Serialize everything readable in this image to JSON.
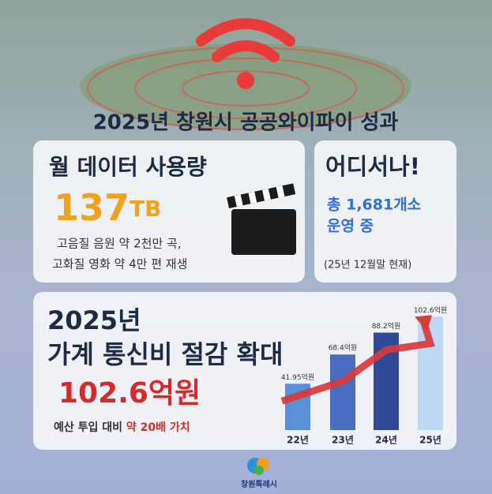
{
  "title": "2025년 창원시 공공와이파이 성과",
  "data_card": {
    "heading": "월 데이터 사용량",
    "value": "137",
    "unit": "TB",
    "lines": [
      "고음질 음원 약 2천만 곡,",
      "고화질 영화 약 4만 편 재생"
    ]
  },
  "location_card": {
    "heading": "어디서나!",
    "lines": [
      "총 1,681개소",
      "운영 중"
    ],
    "note": "(25년 12월말 현재)"
  },
  "savings_card": {
    "lines": [
      "2025년",
      "가계 통신비 절감 확대"
    ],
    "amount": "102.6억원",
    "note": "예산 투입 대비 ",
    "note_highlight": "약 20배 가치"
  },
  "chart_data": {
    "type": "bar",
    "categories": [
      "22년",
      "23년",
      "24년",
      "25년"
    ],
    "values": [
      41.95,
      68.4,
      88.2,
      102.6
    ],
    "value_labels": [
      "41.95억원",
      "68.4억원",
      "88.2억원",
      "102.6억원"
    ],
    "colors": [
      "#5b8fd6",
      "#4a6cc0",
      "#2f4a96",
      "#bcd8f4"
    ],
    "trend_color": "#d93a3a"
  },
  "logo": "창원특례시"
}
